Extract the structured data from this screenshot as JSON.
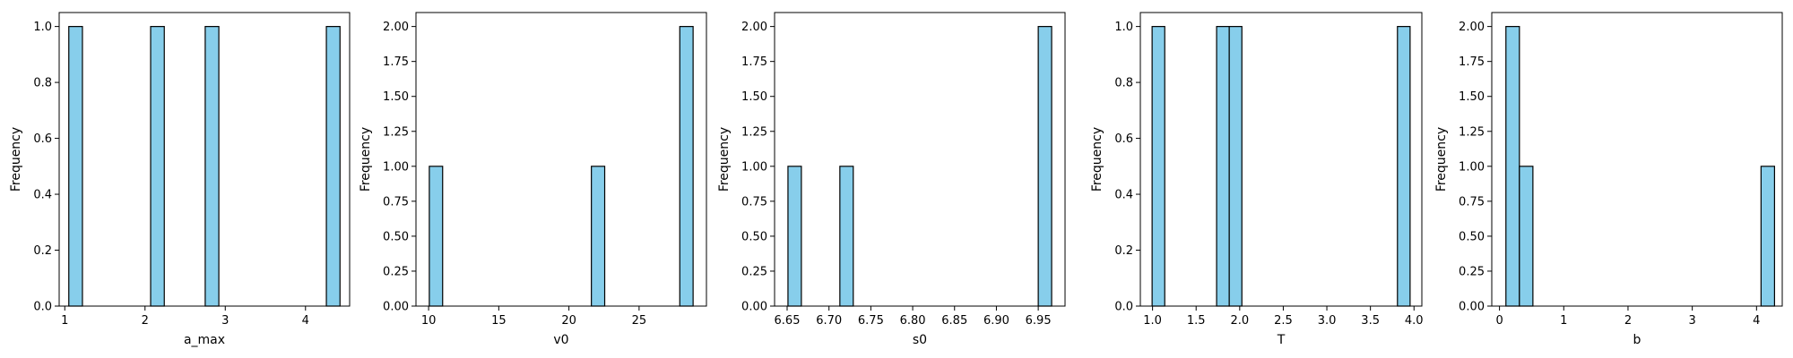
{
  "figure": {
    "bar_color": "#87ceeb",
    "edge_color": "#000000",
    "background": "#ffffff"
  },
  "chart_data": [
    {
      "type": "bar",
      "xlabel": "a_max",
      "ylabel": "Frequency",
      "xlim": [
        0.93,
        4.55
      ],
      "ylim": [
        0,
        1.05
      ],
      "xticks": [
        1,
        2,
        3,
        4
      ],
      "xtick_labels": [
        "1",
        "2",
        "3",
        "4"
      ],
      "yticks": [
        0,
        0.2,
        0.4,
        0.6,
        0.8,
        1.0
      ],
      "ytick_labels": [
        "0.0",
        "0.2",
        "0.4",
        "0.6",
        "0.8",
        "1.0"
      ],
      "bins": [
        {
          "x0": 1.05,
          "x1": 1.22,
          "count": 1
        },
        {
          "x0": 2.07,
          "x1": 2.24,
          "count": 1
        },
        {
          "x0": 2.75,
          "x1": 2.92,
          "count": 1
        },
        {
          "x0": 4.26,
          "x1": 4.43,
          "count": 1
        }
      ]
    },
    {
      "type": "bar",
      "xlabel": "v0",
      "ylabel": "Frequency",
      "xlim": [
        9.1,
        29.8
      ],
      "ylim": [
        0,
        2.1
      ],
      "xticks": [
        10,
        15,
        20,
        25
      ],
      "xtick_labels": [
        "10",
        "15",
        "20",
        "25"
      ],
      "yticks": [
        0,
        0.25,
        0.5,
        0.75,
        1.0,
        1.25,
        1.5,
        1.75,
        2.0
      ],
      "ytick_labels": [
        "0.00",
        "0.25",
        "0.50",
        "0.75",
        "1.00",
        "1.25",
        "1.50",
        "1.75",
        "2.00"
      ],
      "bins": [
        {
          "x0": 10.05,
          "x1": 11.0,
          "count": 1
        },
        {
          "x0": 21.6,
          "x1": 22.55,
          "count": 1
        },
        {
          "x0": 27.9,
          "x1": 28.85,
          "count": 2
        }
      ]
    },
    {
      "type": "bar",
      "xlabel": "s0",
      "ylabel": "Frequency",
      "xlim": [
        6.635,
        6.982
      ],
      "ylim": [
        0,
        2.1
      ],
      "xticks": [
        6.65,
        6.7,
        6.75,
        6.8,
        6.85,
        6.9,
        6.95
      ],
      "xtick_labels": [
        "6.65",
        "6.70",
        "6.75",
        "6.80",
        "6.85",
        "6.90",
        "6.95"
      ],
      "yticks": [
        0,
        0.25,
        0.5,
        0.75,
        1.0,
        1.25,
        1.5,
        1.75,
        2.0
      ],
      "ytick_labels": [
        "0.00",
        "0.25",
        "0.50",
        "0.75",
        "1.00",
        "1.25",
        "1.50",
        "1.75",
        "2.00"
      ],
      "bins": [
        {
          "x0": 6.651,
          "x1": 6.667,
          "count": 1
        },
        {
          "x0": 6.713,
          "x1": 6.729,
          "count": 1
        },
        {
          "x0": 6.95,
          "x1": 6.966,
          "count": 2
        }
      ]
    },
    {
      "type": "bar",
      "xlabel": "T",
      "ylabel": "Frequency",
      "xlim": [
        0.86,
        4.09
      ],
      "ylim": [
        0,
        1.05
      ],
      "xticks": [
        1.0,
        1.5,
        2.0,
        2.5,
        3.0,
        3.5,
        4.0
      ],
      "xtick_labels": [
        "1.0",
        "1.5",
        "2.0",
        "2.5",
        "3.0",
        "3.5",
        "4.0"
      ],
      "yticks": [
        0,
        0.2,
        0.4,
        0.6,
        0.8,
        1.0
      ],
      "ytick_labels": [
        "0.0",
        "0.2",
        "0.4",
        "0.6",
        "0.8",
        "1.0"
      ],
      "bins": [
        {
          "x0": 0.995,
          "x1": 1.14,
          "count": 1
        },
        {
          "x0": 1.735,
          "x1": 1.88,
          "count": 1
        },
        {
          "x0": 1.88,
          "x1": 2.025,
          "count": 1
        },
        {
          "x0": 3.81,
          "x1": 3.955,
          "count": 1
        }
      ]
    },
    {
      "type": "bar",
      "xlabel": "b",
      "ylabel": "Frequency",
      "xlim": [
        -0.12,
        4.4
      ],
      "ylim": [
        0,
        2.1
      ],
      "xticks": [
        0,
        1,
        2,
        3,
        4
      ],
      "xtick_labels": [
        "0",
        "1",
        "2",
        "3",
        "4"
      ],
      "yticks": [
        0,
        0.25,
        0.5,
        0.75,
        1.0,
        1.25,
        1.5,
        1.75,
        2.0
      ],
      "ytick_labels": [
        "0.00",
        "0.25",
        "0.50",
        "0.75",
        "1.00",
        "1.25",
        "1.50",
        "1.75",
        "2.00"
      ],
      "bins": [
        {
          "x0": 0.1,
          "x1": 0.31,
          "count": 2
        },
        {
          "x0": 0.31,
          "x1": 0.52,
          "count": 1
        },
        {
          "x0": 4.07,
          "x1": 4.28,
          "count": 1
        }
      ]
    }
  ]
}
